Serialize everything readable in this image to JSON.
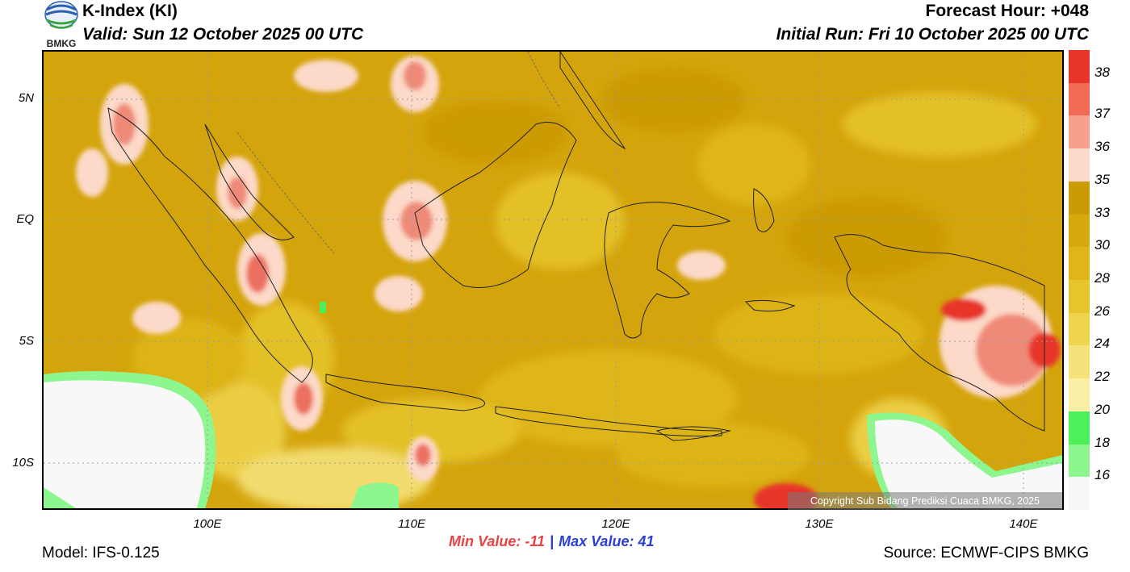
{
  "header": {
    "title": "K-Index (KI)",
    "valid": "Valid: Sun 12 October 2025 00 UTC",
    "forecast_hour": "Forecast Hour: +048",
    "initial_run": "Initial Run: Fri 10 October 2025 00 UTC",
    "logo_text": "BMKG"
  },
  "map": {
    "lat_labels": [
      "5N",
      "EQ",
      "5S",
      "10S"
    ],
    "lon_labels": [
      "100E",
      "110E",
      "120E",
      "130E",
      "140E"
    ],
    "copyright": "Copyright Sub Bidang Prediksi Cuaca BMKG, 2025"
  },
  "colorbar": {
    "labels": [
      "38",
      "37",
      "36",
      "35",
      "33",
      "30",
      "28",
      "26",
      "24",
      "22",
      "20",
      "18",
      "16"
    ],
    "colors": [
      "#e8352a",
      "#f06a55",
      "#f8a08c",
      "#fcd9c8",
      "#cc9a06",
      "#d5a80c",
      "#deb618",
      "#e6c42c",
      "#eed34c",
      "#f5e27a",
      "#fbefa6",
      "#4ef05a",
      "#8ef68e",
      "#f8f8f8"
    ]
  },
  "stats": {
    "min_value": "Min Value: -11",
    "separator": "|",
    "max_value": "Max Value:  41"
  },
  "footer": {
    "model": "Model: IFS-0.125",
    "source": "Source: ECMWF-CIPS BMKG"
  }
}
